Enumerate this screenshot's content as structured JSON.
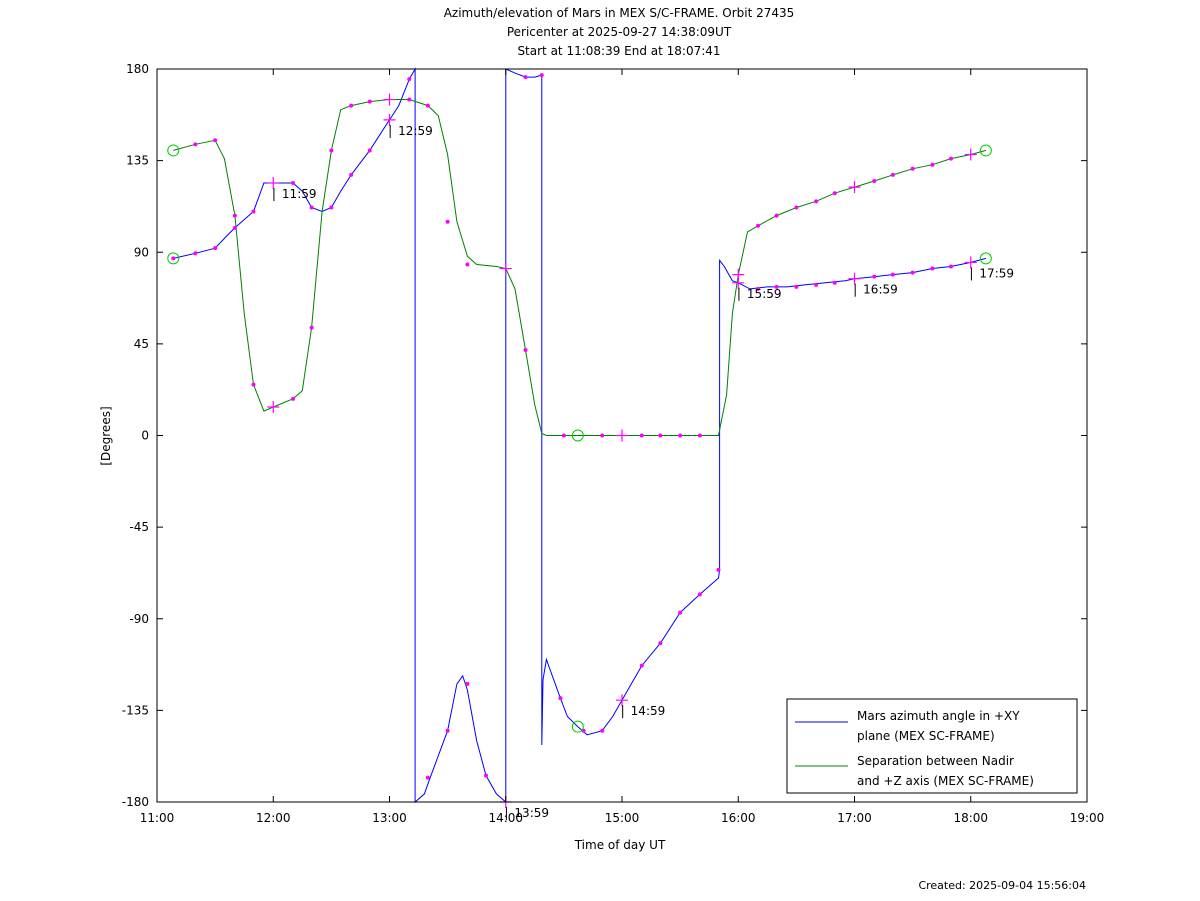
{
  "title_lines": [
    "Azimuth/elevation of Mars in MEX S/C-FRAME.  Orbit 27435",
    "Pericenter at 2025-09-27 14:38:09UT",
    "Start at 11:08:39 End at 18:07:41"
  ],
  "footer": {
    "created": "Created: 2025-09-04 15:56:04"
  },
  "colors": {
    "azimuth": "#0000ff",
    "separation": "#008000",
    "markers": "#ff00ff",
    "circle": "#00cc00"
  },
  "chart_data": {
    "type": "line",
    "xlabel": "Time of day UT",
    "ylabel": "[Degrees]",
    "xlim": [
      11.0,
      19.0
    ],
    "ylim": [
      -180,
      180
    ],
    "x_ticks": [
      11,
      12,
      13,
      14,
      15,
      16,
      17,
      18,
      19
    ],
    "x_tick_labels": [
      "11:00",
      "12:00",
      "13:00",
      "14:00",
      "15:00",
      "16:00",
      "17:00",
      "18:00",
      "19:00"
    ],
    "y_ticks": [
      180,
      135,
      90,
      45,
      0,
      -45,
      -90,
      -135,
      -180
    ],
    "y_tick_labels": [
      "180",
      "135",
      "90",
      "45",
      "0",
      "-45",
      "-90",
      "-135",
      "-180"
    ],
    "grid": false,
    "legend_position": "bottom-right",
    "series": [
      {
        "name": "Mars azimuth angle in +XY plane (MEX SC-FRAME)",
        "legend_lines": [
          "Mars azimuth angle in +XY",
          "plane (MEX SC-FRAME)"
        ],
        "color": "#0000ff",
        "points": [
          [
            11.14,
            87
          ],
          [
            11.33,
            89.5
          ],
          [
            11.5,
            92
          ],
          [
            11.6,
            98
          ],
          [
            11.67,
            102
          ],
          [
            11.83,
            110
          ],
          [
            11.92,
            124
          ],
          [
            12.0,
            124
          ],
          [
            12.17,
            124
          ],
          [
            12.25,
            120
          ],
          [
            12.33,
            112
          ],
          [
            12.42,
            110
          ],
          [
            12.5,
            112
          ],
          [
            12.58,
            120
          ],
          [
            12.67,
            128
          ],
          [
            12.83,
            140
          ],
          [
            12.92,
            148
          ],
          [
            13.0,
            155
          ],
          [
            13.08,
            162
          ],
          [
            13.17,
            175
          ],
          [
            13.22,
            180
          ],
          [
            13.22,
            -180
          ],
          [
            13.3,
            -176
          ],
          [
            13.35,
            -168
          ],
          [
            13.5,
            -145
          ],
          [
            13.58,
            -122
          ],
          [
            13.63,
            -118
          ],
          [
            13.67,
            -125
          ],
          [
            13.75,
            -150
          ],
          [
            13.83,
            -167
          ],
          [
            13.92,
            -176
          ],
          [
            14.0,
            -180
          ],
          [
            14.0,
            180
          ],
          [
            14.08,
            178
          ],
          [
            14.17,
            176
          ],
          [
            14.25,
            176
          ],
          [
            14.31,
            177
          ],
          [
            14.31,
            -152
          ],
          [
            14.32,
            -120
          ],
          [
            14.35,
            -110
          ],
          [
            14.4,
            -118
          ],
          [
            14.47,
            -129
          ],
          [
            14.53,
            -138
          ],
          [
            14.62,
            -143
          ],
          [
            14.7,
            -147
          ],
          [
            14.83,
            -145
          ],
          [
            14.92,
            -138
          ],
          [
            15.0,
            -130
          ],
          [
            15.08,
            -122
          ],
          [
            15.17,
            -113
          ],
          [
            15.33,
            -102
          ],
          [
            15.5,
            -87
          ],
          [
            15.67,
            -78
          ],
          [
            15.83,
            -70
          ],
          [
            15.84,
            -66
          ],
          [
            15.84,
            86
          ],
          [
            15.88,
            83
          ],
          [
            15.95,
            76
          ],
          [
            16.0,
            75
          ],
          [
            16.1,
            72
          ],
          [
            16.25,
            73
          ],
          [
            16.42,
            73
          ],
          [
            16.58,
            74
          ],
          [
            16.75,
            75
          ],
          [
            16.92,
            76
          ],
          [
            17.0,
            77
          ],
          [
            17.17,
            78
          ],
          [
            17.33,
            79
          ],
          [
            17.5,
            80
          ],
          [
            17.67,
            82
          ],
          [
            17.83,
            83
          ],
          [
            18.0,
            85
          ],
          [
            18.13,
            87
          ]
        ],
        "time_labels": [
          {
            "text": "11:59",
            "x": 11.98,
            "y": 124
          },
          {
            "text": "12:59",
            "x": 12.98,
            "y": 155
          },
          {
            "text": "13:59",
            "x": 13.98,
            "y": -180
          },
          {
            "text": "14:59",
            "x": 14.98,
            "y": -130
          },
          {
            "text": "15:59",
            "x": 15.98,
            "y": 75
          },
          {
            "text": "16:59",
            "x": 16.98,
            "y": 77
          },
          {
            "text": "17:59",
            "x": 17.98,
            "y": 85
          }
        ]
      },
      {
        "name": "Separation between Nadir and +Z axis (MEX SC-FRAME)",
        "legend_lines": [
          "Separation between Nadir",
          "and +Z axis (MEX SC-FRAME)"
        ],
        "color": "#008000",
        "points": [
          [
            11.14,
            140
          ],
          [
            11.33,
            143
          ],
          [
            11.5,
            145
          ],
          [
            11.58,
            136
          ],
          [
            11.67,
            108
          ],
          [
            11.75,
            60
          ],
          [
            11.83,
            25
          ],
          [
            11.92,
            12
          ],
          [
            12.0,
            14
          ],
          [
            12.17,
            18
          ],
          [
            12.25,
            22
          ],
          [
            12.33,
            53
          ],
          [
            12.42,
            110
          ],
          [
            12.5,
            140
          ],
          [
            12.58,
            160
          ],
          [
            12.67,
            162
          ],
          [
            12.83,
            164
          ],
          [
            13.0,
            165
          ],
          [
            13.17,
            165
          ],
          [
            13.33,
            162
          ],
          [
            13.42,
            157
          ],
          [
            13.5,
            138
          ],
          [
            13.58,
            105
          ],
          [
            13.67,
            88
          ],
          [
            13.75,
            84
          ],
          [
            13.92,
            83
          ],
          [
            14.0,
            82
          ],
          [
            14.08,
            72
          ],
          [
            14.17,
            42
          ],
          [
            14.25,
            15
          ],
          [
            14.31,
            1
          ],
          [
            14.35,
            0
          ],
          [
            14.5,
            0
          ],
          [
            14.62,
            0
          ],
          [
            14.83,
            0
          ],
          [
            15.0,
            0
          ],
          [
            15.17,
            0
          ],
          [
            15.33,
            0
          ],
          [
            15.5,
            0
          ],
          [
            15.67,
            0
          ],
          [
            15.83,
            0
          ],
          [
            15.9,
            20
          ],
          [
            15.95,
            60
          ],
          [
            16.0,
            79
          ],
          [
            16.08,
            100
          ],
          [
            16.17,
            103
          ],
          [
            16.33,
            108
          ],
          [
            16.5,
            112
          ],
          [
            16.67,
            115
          ],
          [
            16.83,
            119
          ],
          [
            17.0,
            122
          ],
          [
            17.17,
            125
          ],
          [
            17.33,
            128
          ],
          [
            17.5,
            131
          ],
          [
            17.67,
            133
          ],
          [
            17.83,
            136
          ],
          [
            18.0,
            138
          ],
          [
            18.13,
            140
          ]
        ]
      }
    ],
    "markers": {
      "dots_azimuth": [
        [
          11.14,
          87
        ],
        [
          11.33,
          89.5
        ],
        [
          11.5,
          92
        ],
        [
          11.67,
          102
        ],
        [
          11.83,
          110
        ],
        [
          12.17,
          124
        ],
        [
          12.33,
          112
        ],
        [
          12.5,
          112
        ],
        [
          12.67,
          128
        ],
        [
          12.83,
          140
        ],
        [
          13.17,
          175
        ],
        [
          13.33,
          -168
        ],
        [
          13.5,
          -145
        ],
        [
          13.67,
          -122
        ],
        [
          13.83,
          -167
        ],
        [
          14.17,
          176
        ],
        [
          14.31,
          177
        ],
        [
          14.47,
          -129
        ],
        [
          14.67,
          -145
        ],
        [
          14.83,
          -145
        ],
        [
          15.17,
          -113
        ],
        [
          15.33,
          -102
        ],
        [
          15.5,
          -87
        ],
        [
          15.67,
          -78
        ],
        [
          15.83,
          -66
        ],
        [
          16.17,
          72
        ],
        [
          16.33,
          73
        ],
        [
          16.5,
          73
        ],
        [
          16.67,
          74
        ],
        [
          16.83,
          75
        ],
        [
          17.17,
          78
        ],
        [
          17.33,
          79
        ],
        [
          17.5,
          80
        ],
        [
          17.67,
          82
        ],
        [
          17.83,
          83
        ]
      ],
      "dots_separation": [
        [
          11.33,
          143
        ],
        [
          11.5,
          145
        ],
        [
          11.67,
          108
        ],
        [
          11.83,
          25
        ],
        [
          12.17,
          18
        ],
        [
          12.33,
          53
        ],
        [
          12.5,
          140
        ],
        [
          12.67,
          162
        ],
        [
          12.83,
          164
        ],
        [
          13.17,
          165
        ],
        [
          13.33,
          162
        ],
        [
          13.5,
          105
        ],
        [
          13.67,
          84
        ],
        [
          14.17,
          42
        ],
        [
          14.5,
          0
        ],
        [
          14.83,
          0
        ],
        [
          15.17,
          0
        ],
        [
          15.33,
          0
        ],
        [
          15.5,
          0
        ],
        [
          15.67,
          0
        ],
        [
          16.17,
          103
        ],
        [
          16.33,
          108
        ],
        [
          16.5,
          112
        ],
        [
          16.67,
          115
        ],
        [
          16.83,
          119
        ],
        [
          17.17,
          125
        ],
        [
          17.33,
          128
        ],
        [
          17.5,
          131
        ],
        [
          17.67,
          133
        ],
        [
          17.83,
          136
        ]
      ],
      "crosses": [
        [
          12.0,
          124
        ],
        [
          12.0,
          14
        ],
        [
          13.0,
          155
        ],
        [
          13.0,
          165
        ],
        [
          14.0,
          -180
        ],
        [
          14.0,
          82
        ],
        [
          15.0,
          -130
        ],
        [
          15.0,
          0
        ],
        [
          16.0,
          75
        ],
        [
          16.0,
          79
        ],
        [
          17.0,
          77
        ],
        [
          17.0,
          122
        ],
        [
          18.0,
          85
        ],
        [
          18.0,
          138
        ]
      ],
      "circles": [
        [
          11.14,
          87
        ],
        [
          11.14,
          140
        ],
        [
          14.62,
          -143
        ],
        [
          14.62,
          0
        ],
        [
          18.13,
          87
        ],
        [
          18.13,
          140
        ]
      ]
    }
  }
}
